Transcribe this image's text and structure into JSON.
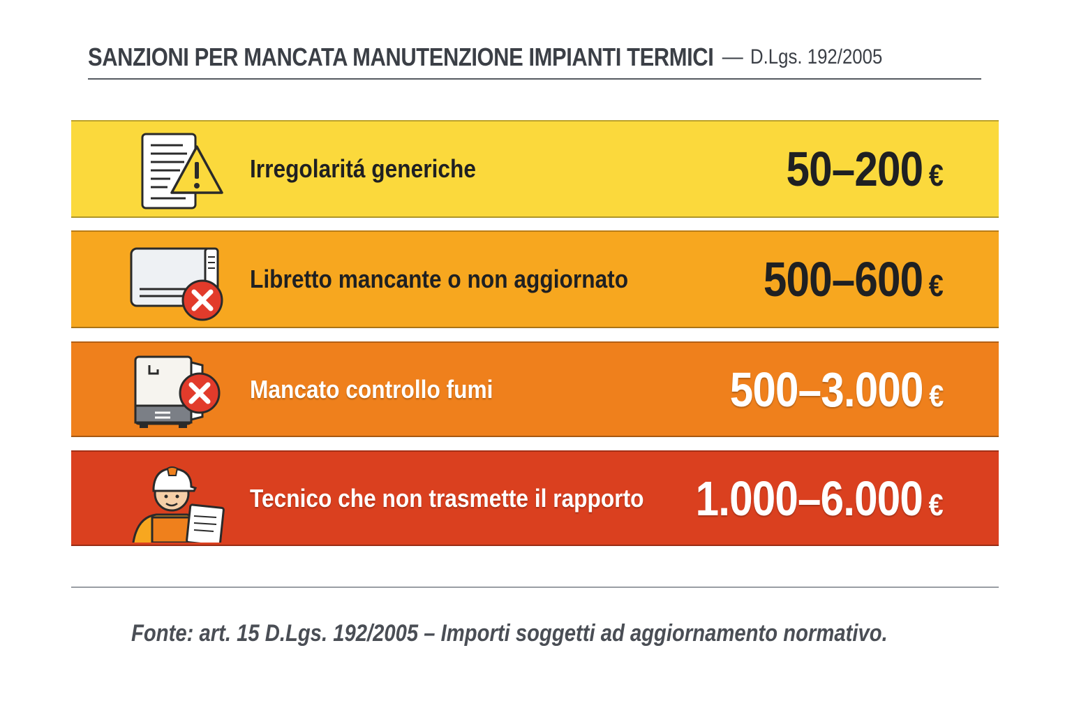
{
  "header": {
    "title": "SANZIONI PER MANCATA MANUTENZIONE IMPIANTI TERMICI",
    "separator": "—",
    "subtitle": "D.Lgs. 192/2005"
  },
  "rows": [
    {
      "label": "Irregolaritá generiche",
      "amount": "50–200",
      "currency": "€",
      "icon": "document-warning-icon",
      "color": "#fbd93c"
    },
    {
      "label": "Libretto mancante o non aggiornato",
      "amount": "500–600",
      "currency": "€",
      "icon": "boiler-error-icon",
      "color": "#f7a71f"
    },
    {
      "label": "Mancato controllo fumi",
      "amount": "500–3.000",
      "currency": "€",
      "icon": "heater-error-icon",
      "color": "#ef801c"
    },
    {
      "label": "Tecnico che non trasmette il rapporto",
      "amount": "1.000–6.000",
      "currency": "€",
      "icon": "technician-icon",
      "color": "#da401f"
    }
  ],
  "footer": {
    "source": "Fonte: art. 15 D.Lgs. 192/2005 – Importi soggetti ad aggiornamento normativo."
  }
}
